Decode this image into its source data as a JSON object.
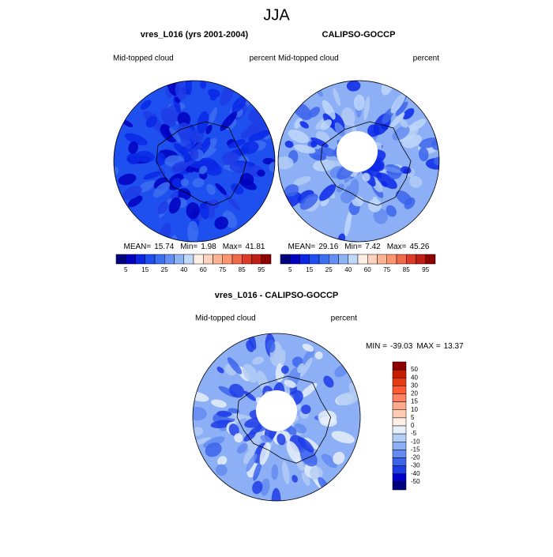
{
  "title": "JJA",
  "panels": [
    {
      "title": "vres_L016 (yrs 2001-2004)",
      "left_label": "Mid-topped cloud",
      "right_label": "percent",
      "stats": [
        {
          "label": "MEAN=",
          "value": 15.74
        },
        {
          "label": "Min=",
          "value": 1.98
        },
        {
          "label": "Max=",
          "value": 41.81
        }
      ]
    },
    {
      "title": "CALIPSO-GOCCP",
      "left_label": "Mid-topped cloud",
      "right_label": "percent",
      "stats": [
        {
          "label": "MEAN=",
          "value": 29.16
        },
        {
          "label": "Min=",
          "value": 7.42
        },
        {
          "label": "Max=",
          "value": 45.26
        }
      ]
    },
    {
      "title": "vres_L016 - CALIPSO-GOCCP",
      "left_label": "Mid-topped cloud",
      "right_label": "percent",
      "stats": [
        {
          "label": "MIN =",
          "value": -39.03
        },
        {
          "label": "MAX =",
          "value": 13.37
        }
      ]
    }
  ],
  "colorbar": {
    "labels": [
      5,
      15,
      25,
      40,
      60,
      75,
      85,
      95
    ],
    "colors": [
      "#00007f",
      "#0000c0",
      "#0a28e6",
      "#1e50f0",
      "#3c6ef0",
      "#6490f5",
      "#8cb4f5",
      "#bed7fa",
      "#fff0e6",
      "#ffd2be",
      "#ffb496",
      "#ff9673",
      "#f0694b",
      "#dc3c28",
      "#be1e14",
      "#8c0000"
    ]
  },
  "diff_colorbar": {
    "labels": [
      50,
      40,
      30,
      20,
      15,
      10,
      5,
      0,
      -5,
      -10,
      -15,
      -20,
      -30,
      -40,
      -50
    ],
    "colors": [
      "#8c0000",
      "#c81e00",
      "#e63c14",
      "#ff5a32",
      "#ff8264",
      "#ffaa8c",
      "#ffccb4",
      "#fff0e6",
      "#e6f0fa",
      "#b4cdf5",
      "#8caff5",
      "#648cf0",
      "#3c64eb",
      "#1e3ce6",
      "#0000c8",
      "#00007f"
    ]
  }
}
